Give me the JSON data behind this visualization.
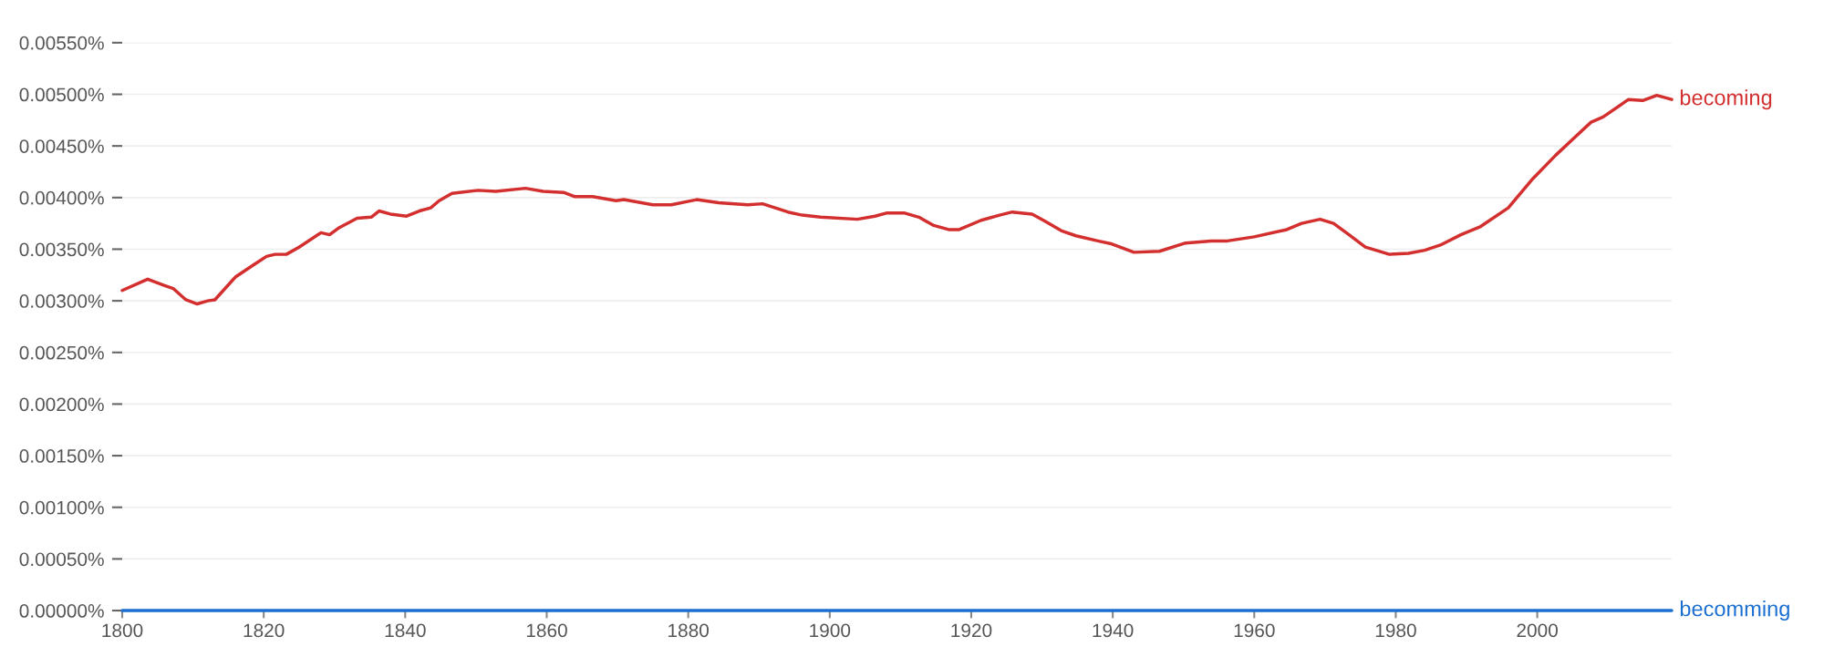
{
  "chart_data": {
    "type": "line",
    "xlim": [
      1800,
      2019
    ],
    "xticks": [
      1800,
      1820,
      1840,
      1860,
      1880,
      1900,
      1920,
      1940,
      1960,
      1980,
      2000
    ],
    "ylim": [
      0,
      0.0055
    ],
    "yticks": [
      {
        "value": 0,
        "label": "0.00000%"
      },
      {
        "value": 0.0005,
        "label": "0.00050%"
      },
      {
        "value": 0.001,
        "label": "0.00100%"
      },
      {
        "value": 0.0015,
        "label": "0.00150%"
      },
      {
        "value": 0.002,
        "label": "0.00200%"
      },
      {
        "value": 0.0025,
        "label": "0.00250%"
      },
      {
        "value": 0.003,
        "label": "0.00300%"
      },
      {
        "value": 0.0035,
        "label": "0.00350%"
      },
      {
        "value": 0.004,
        "label": "0.00400%"
      },
      {
        "value": 0.0045,
        "label": "0.00450%"
      },
      {
        "value": 0.005,
        "label": "0.00500%"
      },
      {
        "value": 0.0055,
        "label": "0.00550%"
      }
    ],
    "grid": "y",
    "legend": false,
    "marker": "none",
    "line_style": "solid",
    "series": [
      {
        "name": "becoming",
        "color": "#d32f2f",
        "x": [
          1800,
          1803.6,
          1805.9,
          1807.2,
          1809,
          1810.6,
          1812.1,
          1813.1,
          1816,
          1818.6,
          1820.4,
          1821.6,
          1823.2,
          1825,
          1828.1,
          1829.3,
          1830.7,
          1833.2,
          1835.2,
          1836.3,
          1837.9,
          1840.2,
          1842,
          1843.6,
          1844.8,
          1846.6,
          1850.3,
          1852.8,
          1857,
          1859.5,
          1862.4,
          1863.9,
          1866.5,
          1869.8,
          1870.9,
          1875,
          1877.6,
          1881.2,
          1884.3,
          1888.4,
          1890.5,
          1894.1,
          1896.1,
          1898.7,
          1903.9,
          1906.4,
          1908,
          1910.6,
          1912.6,
          1914.7,
          1916.8,
          1918.3,
          1921.4,
          1924,
          1925.8,
          1928.6,
          1930.2,
          1932.7,
          1934.8,
          1937.9,
          1939.9,
          1943,
          1946.6,
          1950.3,
          1953.9,
          1956.2,
          1960,
          1964.6,
          1966.7,
          1969.3,
          1971.2,
          1973.4,
          1975.7,
          1979.1,
          1981.8,
          1984.1,
          1986.3,
          1989.2,
          1992,
          1995.9,
          1999.2,
          2002.6,
          2005.4,
          2007.6,
          2009.3,
          2012.9,
          2014.9,
          2016.9,
          2019
        ],
        "values": [
          0.0031,
          0.00321,
          0.00315,
          0.00312,
          0.00301,
          0.00297,
          0.003,
          0.00301,
          0.00323,
          0.00335,
          0.00343,
          0.00345,
          0.00345,
          0.00352,
          0.00366,
          0.00364,
          0.00371,
          0.0038,
          0.00381,
          0.00387,
          0.00384,
          0.00382,
          0.00387,
          0.0039,
          0.00397,
          0.00404,
          0.00407,
          0.00406,
          0.00409,
          0.00406,
          0.00405,
          0.00401,
          0.00401,
          0.00397,
          0.00398,
          0.00393,
          0.00393,
          0.00398,
          0.00395,
          0.00393,
          0.00394,
          0.00386,
          0.00383,
          0.00381,
          0.00379,
          0.00382,
          0.00385,
          0.00385,
          0.00381,
          0.00373,
          0.00369,
          0.00369,
          0.00378,
          0.00383,
          0.00386,
          0.00384,
          0.00378,
          0.00368,
          0.00363,
          0.00358,
          0.00355,
          0.00347,
          0.00348,
          0.00356,
          0.00358,
          0.00358,
          0.00362,
          0.00369,
          0.00375,
          0.00379,
          0.00375,
          0.00364,
          0.00352,
          0.00345,
          0.00346,
          0.00349,
          0.00354,
          0.00364,
          0.00372,
          0.0039,
          0.00417,
          0.00441,
          0.00459,
          0.00473,
          0.00478,
          0.00495,
          0.00494,
          0.00499,
          0.00495
        ]
      },
      {
        "name": "becomming",
        "color": "#1a6fd0",
        "x": [
          1800,
          1850,
          1900,
          1950,
          2000,
          2019
        ],
        "values": [
          0,
          0,
          0,
          0,
          0,
          0
        ]
      }
    ]
  }
}
